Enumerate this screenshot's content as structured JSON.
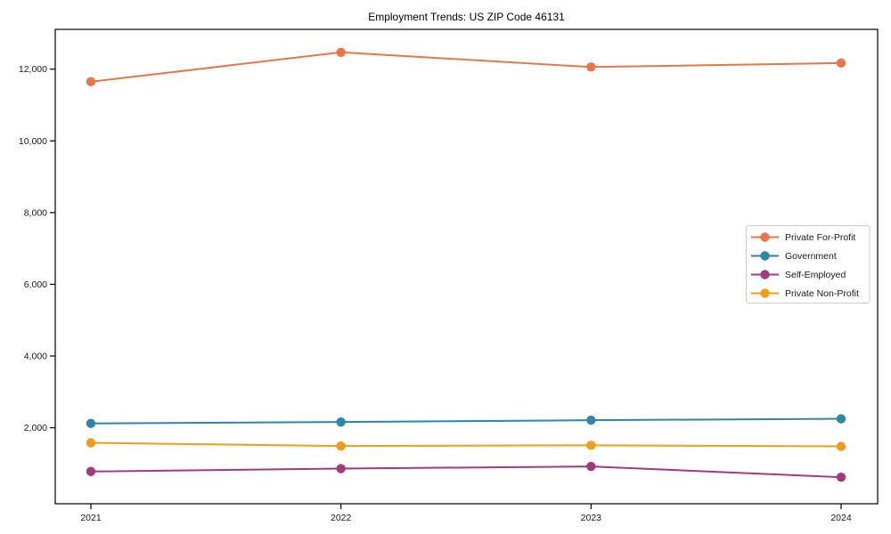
{
  "figure": {
    "title": "Employment Trends: US ZIP Code 46131"
  },
  "chart_data": {
    "type": "line",
    "title": "Employment Trends: US ZIP Code 46131",
    "xlabel": "",
    "ylabel": "",
    "categories": [
      "2021",
      "2022",
      "2023",
      "2024"
    ],
    "series": [
      {
        "name": "Private For-Profit",
        "color": "#e8764a",
        "values": [
          11650,
          12470,
          12060,
          12170
        ]
      },
      {
        "name": "Government",
        "color": "#2e86a8",
        "values": [
          2120,
          2160,
          2210,
          2250
        ]
      },
      {
        "name": "Self-Employed",
        "color": "#a13a7e",
        "values": [
          780,
          860,
          920,
          620
        ]
      },
      {
        "name": "Private Non-Profit",
        "color": "#f09c1c",
        "values": [
          1580,
          1490,
          1510,
          1480
        ]
      }
    ],
    "yticks": [
      {
        "value": 2000,
        "label": "2,000"
      },
      {
        "value": 4000,
        "label": "4,000"
      },
      {
        "value": 6000,
        "label": "6,000"
      },
      {
        "value": 8000,
        "label": "8,000"
      },
      {
        "value": 10000,
        "label": "10,000"
      },
      {
        "value": 12000,
        "label": "12,000"
      }
    ],
    "ylim": [
      -120,
      13110
    ],
    "grid": false,
    "legend_position": "center right",
    "marker": "circle",
    "frame_color": "#000000",
    "legend_border_color": "#cccccc"
  }
}
